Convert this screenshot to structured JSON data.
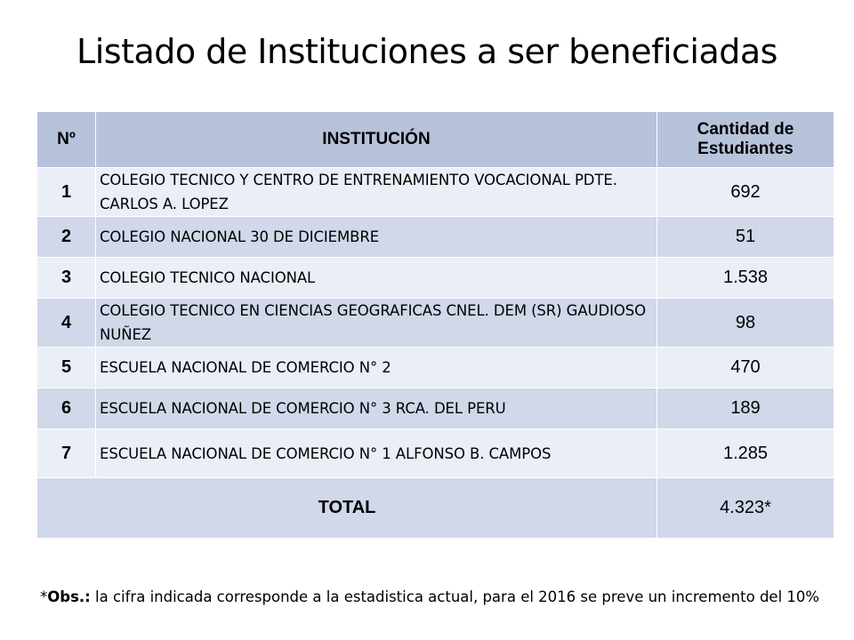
{
  "title": "Listado de Instituciones a ser beneficiadas",
  "table": {
    "headers": {
      "num": "Nº",
      "institucion": "INSTITUCIÓN",
      "cantidad_line1": "Cantidad de",
      "cantidad_line2": "Estudiantes"
    },
    "rows": [
      {
        "num": "1",
        "name": "COLEGIO TECNICO Y CENTRO DE ENTRENAMIENTO VOCACIONAL PDTE. CARLOS A. LOPEZ",
        "value": "692"
      },
      {
        "num": "2",
        "name": "COLEGIO NACIONAL 30 DE DICIEMBRE",
        "value": "51"
      },
      {
        "num": "3",
        "name": "COLEGIO TECNICO NACIONAL",
        "value": "1.538"
      },
      {
        "num": "4",
        "name": "COLEGIO TECNICO EN CIENCIAS GEOGRAFICAS CNEL. DEM (SR) GAUDIOSO NUÑEZ",
        "value": "98"
      },
      {
        "num": "5",
        "name": "ESCUELA NACIONAL DE COMERCIO N° 2",
        "value": "470"
      },
      {
        "num": "6",
        "name": "ESCUELA NACIONAL DE COMERCIO N° 3 RCA. DEL PERU",
        "value": "189"
      },
      {
        "num": "7",
        "name": "ESCUELA NACIONAL DE COMERCIO N° 1 ALFONSO B. CAMPOS",
        "value": "1.285"
      }
    ],
    "total_label": "TOTAL",
    "total_value": "4.323*"
  },
  "note": {
    "prefix": "*",
    "bold": "Obs.:",
    "text": " la cifra indicada corresponde a la estadistica actual, para el 2016 se preve un incremento del 10%"
  }
}
